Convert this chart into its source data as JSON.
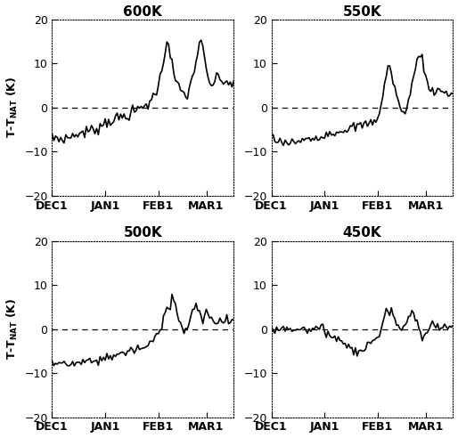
{
  "titles": [
    "600K",
    "550K",
    "500K",
    "450K"
  ],
  "xlabel_ticks": [
    "DEC1",
    "JAN1",
    "FEB1",
    "MAR1"
  ],
  "ylim": [
    -20,
    20
  ],
  "yticks": [
    -20,
    -10,
    0,
    10,
    20
  ],
  "line_color": "#000000",
  "linewidth": 1.2,
  "k600": [
    -7.0,
    -7.2,
    -6.5,
    -7.0,
    -7.3,
    -6.8,
    -7.5,
    -7.0,
    -6.8,
    -7.2,
    -6.5,
    -6.8,
    -6.2,
    -6.5,
    -6.0,
    -5.8,
    -6.2,
    -5.7,
    -5.5,
    -5.9,
    -5.3,
    -5.6,
    -5.0,
    -5.3,
    -4.8,
    -5.1,
    -4.5,
    -4.8,
    -4.3,
    -4.0,
    -3.5,
    -3.2,
    -3.5,
    -3.0,
    -2.8,
    -3.2,
    -2.5,
    -2.8,
    -2.3,
    -2.6,
    -2.0,
    -2.3,
    -1.8,
    -2.1,
    -1.5,
    -1.8,
    -1.2,
    -0.8,
    -1.2,
    -0.5,
    -0.9,
    -0.3,
    0.2,
    -0.3,
    0.5,
    1.0,
    0.5,
    1.2,
    1.8,
    2.5,
    3.2,
    4.0,
    5.0,
    6.5,
    8.5,
    10.5,
    13.0,
    15.5,
    14.5,
    12.0,
    10.0,
    8.0,
    6.0,
    5.0,
    4.5,
    4.0,
    3.5,
    3.0,
    2.5,
    3.0,
    4.0,
    5.5,
    7.0,
    8.5,
    10.5,
    12.5,
    15.0,
    14.5,
    13.0,
    11.0,
    8.5,
    6.5,
    5.5,
    5.0,
    5.5,
    6.0,
    6.5,
    7.0,
    6.5,
    6.2,
    5.8,
    5.5,
    5.8,
    6.0,
    5.5,
    5.0,
    5.2
  ],
  "k550": [
    -6.5,
    -7.0,
    -7.5,
    -7.8,
    -8.0,
    -7.5,
    -8.2,
    -8.0,
    -7.5,
    -8.0,
    -8.3,
    -7.8,
    -8.0,
    -7.5,
    -7.8,
    -8.1,
    -7.6,
    -7.9,
    -7.4,
    -7.7,
    -7.2,
    -7.5,
    -7.0,
    -7.3,
    -6.8,
    -7.1,
    -6.6,
    -6.9,
    -6.4,
    -6.7,
    -6.2,
    -6.0,
    -5.8,
    -6.2,
    -5.7,
    -6.0,
    -5.5,
    -5.8,
    -5.3,
    -5.6,
    -5.1,
    -5.4,
    -4.9,
    -5.2,
    -4.7,
    -5.0,
    -4.5,
    -4.8,
    -4.3,
    -4.6,
    -4.1,
    -4.4,
    -3.9,
    -4.2,
    -3.7,
    -4.0,
    -3.5,
    -3.8,
    -3.3,
    -3.6,
    -3.1,
    -2.8,
    -2.0,
    -1.0,
    0.5,
    2.5,
    5.0,
    7.5,
    9.5,
    9.0,
    7.5,
    6.0,
    4.5,
    3.0,
    1.5,
    0.0,
    -1.5,
    -1.0,
    -0.5,
    0.5,
    1.5,
    3.0,
    5.0,
    7.0,
    9.0,
    10.5,
    12.0,
    12.5,
    11.0,
    9.0,
    7.0,
    5.5,
    4.0,
    4.5,
    4.0,
    3.5,
    4.0,
    4.5,
    3.8,
    3.5,
    3.2,
    3.5,
    3.8,
    3.2,
    2.8,
    3.0,
    3.2
  ],
  "k500": [
    -7.5,
    -8.0,
    -7.5,
    -8.0,
    -7.5,
    -8.0,
    -7.8,
    -8.2,
    -7.8,
    -8.2,
    -7.8,
    -8.1,
    -7.7,
    -8.0,
    -7.6,
    -7.9,
    -7.5,
    -7.8,
    -7.4,
    -7.7,
    -7.3,
    -7.6,
    -7.2,
    -7.5,
    -7.1,
    -7.4,
    -7.0,
    -7.3,
    -6.9,
    -7.2,
    -6.8,
    -6.5,
    -6.2,
    -6.5,
    -6.0,
    -6.3,
    -5.8,
    -6.1,
    -5.6,
    -5.9,
    -5.4,
    -5.7,
    -5.2,
    -5.5,
    -5.0,
    -5.3,
    -4.8,
    -5.1,
    -4.6,
    -4.9,
    -4.4,
    -4.7,
    -4.2,
    -4.5,
    -4.0,
    -4.3,
    -3.8,
    -3.5,
    -3.0,
    -2.5,
    -2.0,
    -1.5,
    -0.8,
    0.0,
    1.0,
    2.5,
    4.0,
    6.0,
    5.5,
    4.5,
    7.5,
    6.5,
    5.5,
    4.0,
    2.5,
    1.0,
    0.0,
    -1.0,
    -0.5,
    0.5,
    1.5,
    2.5,
    3.5,
    4.5,
    5.0,
    4.5,
    4.0,
    3.0,
    2.0,
    3.0,
    4.0,
    3.5,
    2.5,
    2.0,
    2.5,
    2.0,
    1.5,
    2.0,
    1.8,
    1.5,
    1.8,
    2.0,
    1.8,
    1.5,
    1.8,
    2.0,
    1.8
  ],
  "k450": [
    0.5,
    0.0,
    -0.5,
    0.2,
    -0.3,
    0.4,
    -0.2,
    0.3,
    -0.4,
    0.5,
    -0.3,
    0.4,
    0.0,
    -0.4,
    0.3,
    -0.2,
    0.4,
    -0.1,
    0.3,
    -0.3,
    0.2,
    -0.4,
    0.3,
    -0.1,
    0.4,
    -0.2,
    0.3,
    -0.4,
    0.2,
    -0.1,
    0.3,
    -0.5,
    -1.0,
    -0.5,
    -1.5,
    -1.0,
    -2.0,
    -1.5,
    -2.5,
    -2.0,
    -3.0,
    -2.5,
    -3.5,
    -3.0,
    -4.0,
    -3.5,
    -4.5,
    -4.0,
    -5.0,
    -4.5,
    -5.5,
    -5.0,
    -5.5,
    -5.0,
    -4.5,
    -4.0,
    -3.5,
    -3.0,
    -3.5,
    -3.0,
    -2.5,
    -2.0,
    -1.5,
    -0.5,
    0.5,
    1.5,
    3.0,
    4.5,
    4.0,
    3.0,
    4.5,
    3.5,
    2.5,
    1.5,
    0.5,
    0.0,
    -0.5,
    0.0,
    0.5,
    1.5,
    2.5,
    3.5,
    4.0,
    3.5,
    2.5,
    1.5,
    0.5,
    -1.0,
    -2.5,
    -2.0,
    -1.5,
    -0.5,
    0.5,
    1.0,
    1.5,
    1.0,
    0.5,
    1.0,
    0.8,
    0.5,
    0.8,
    1.0,
    0.8,
    0.5,
    0.8,
    1.0,
    0.8
  ]
}
